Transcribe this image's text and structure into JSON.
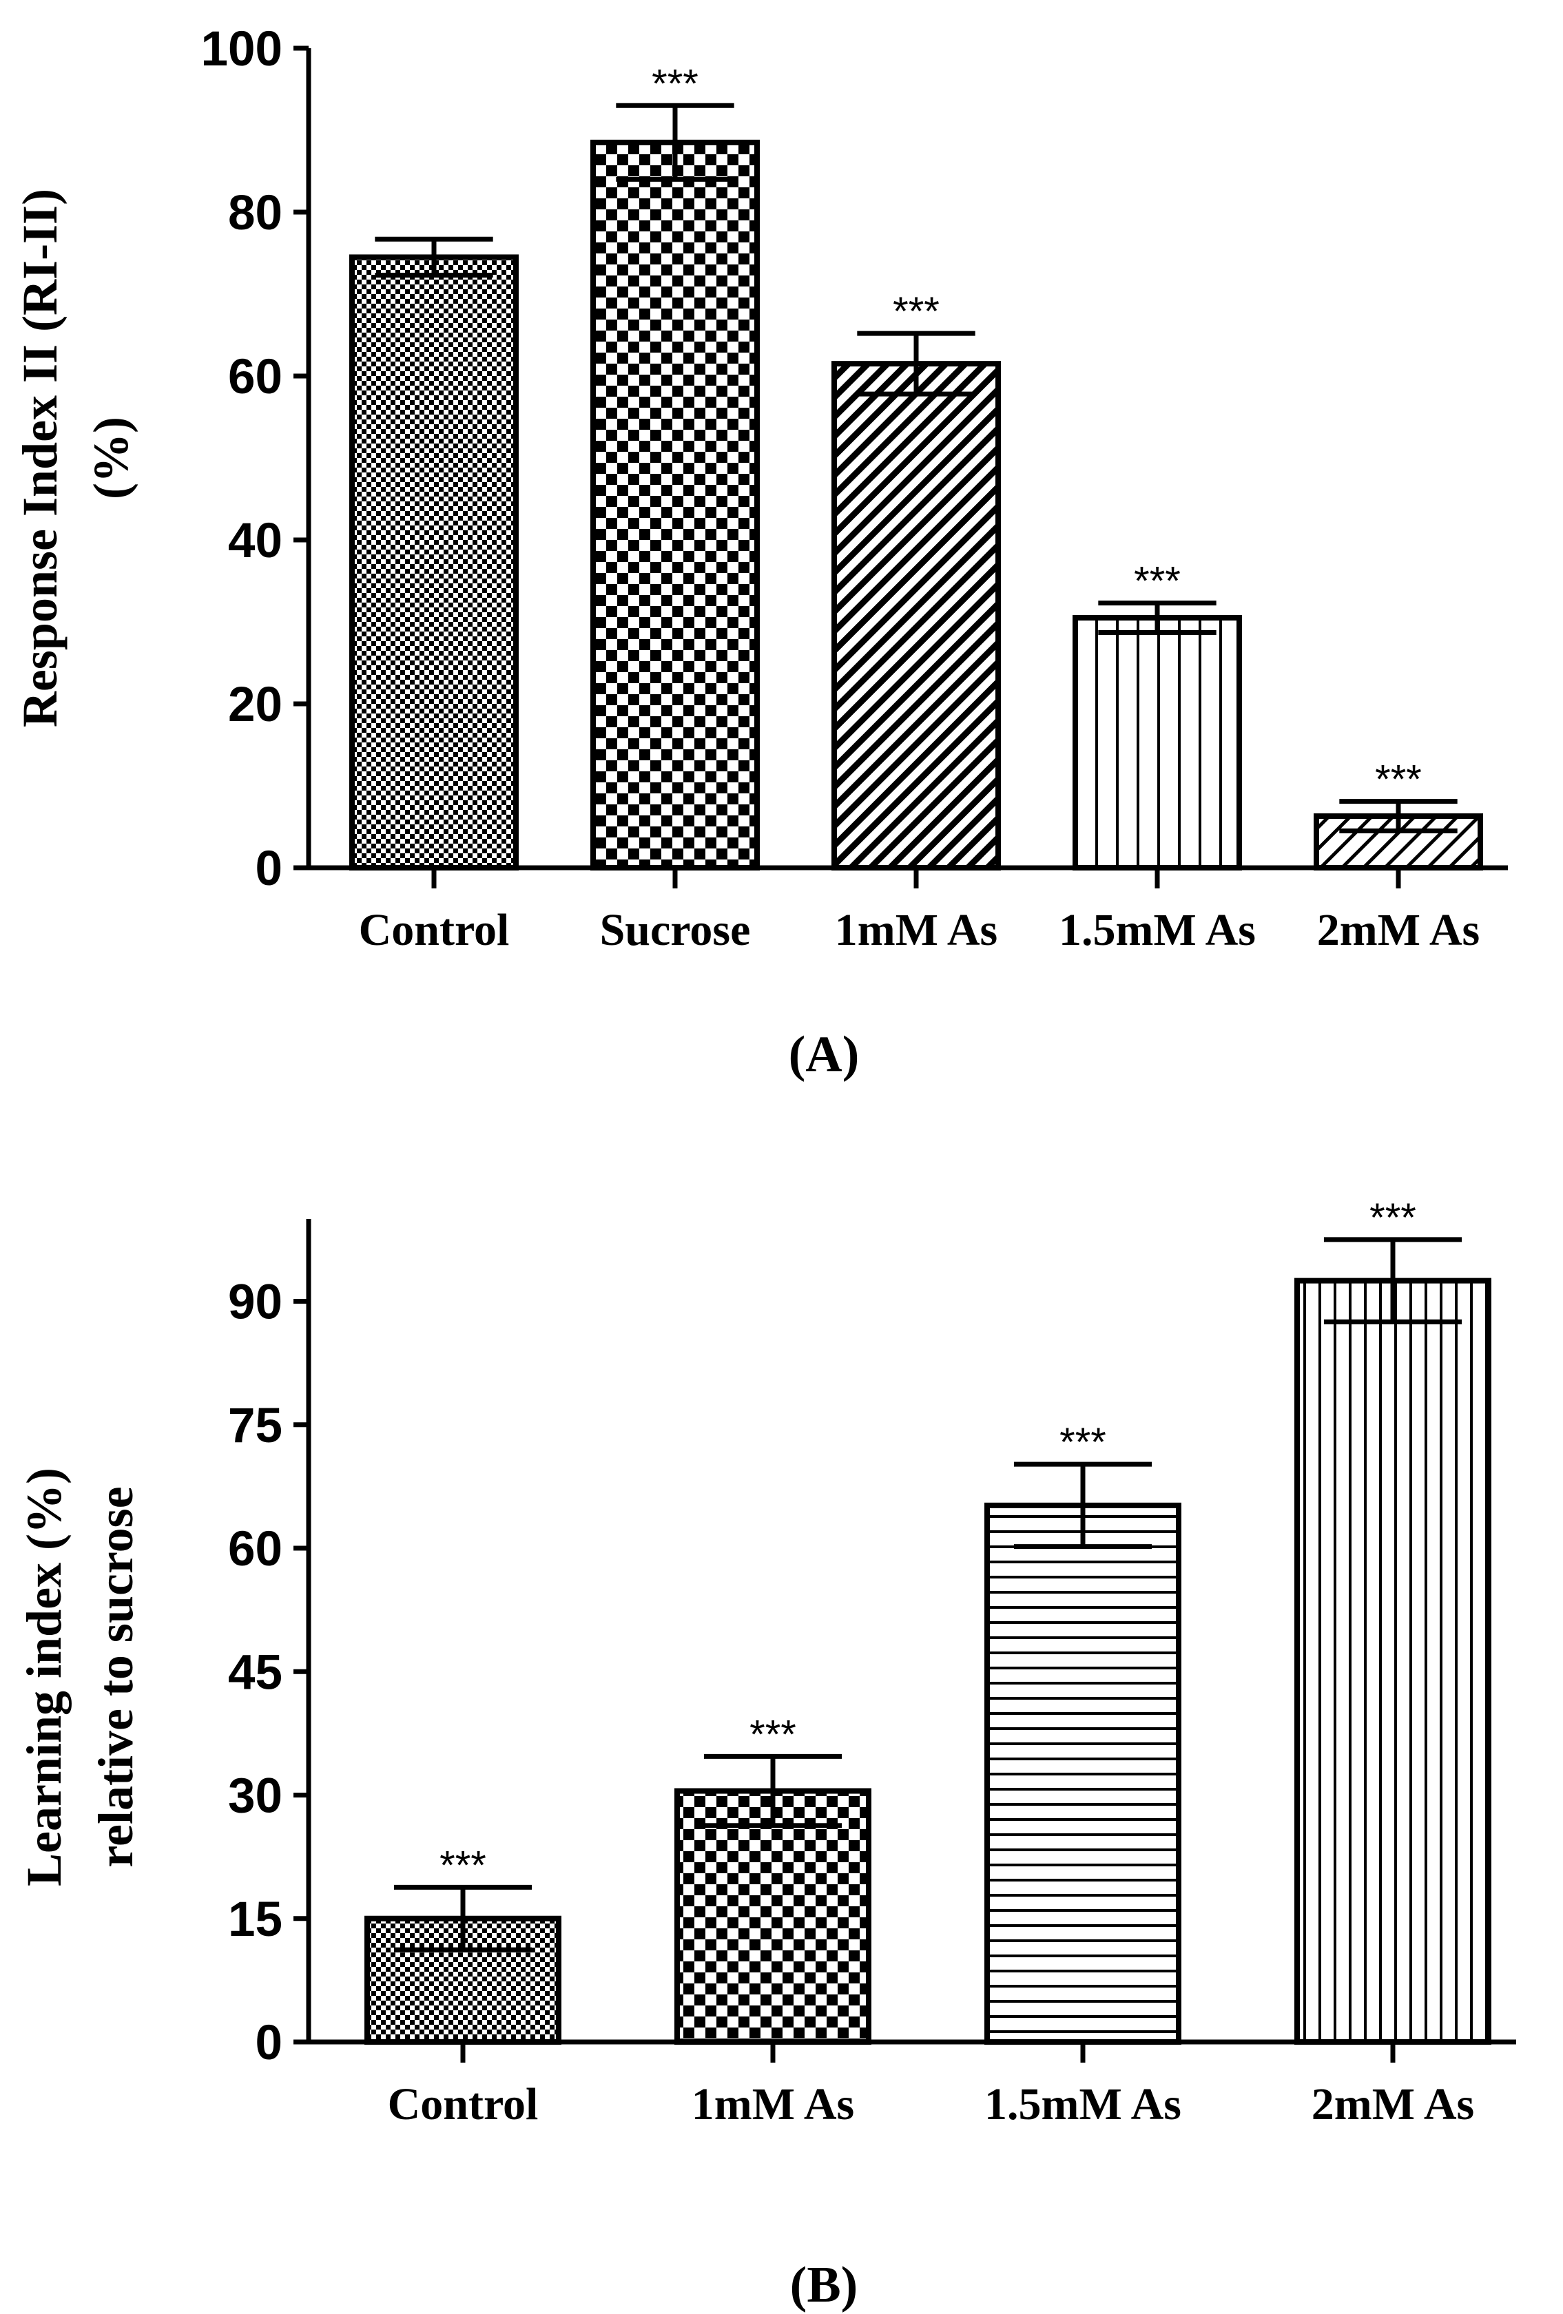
{
  "chart_data": [
    {
      "type": "bar",
      "panel_label": "(A)",
      "ylabel_lines": [
        "Response Index II (RI-II)",
        "(%)"
      ],
      "xlabel": "",
      "categories": [
        "Control",
        "Sucrose",
        "1mM As",
        "1.5mM As",
        "2mM As"
      ],
      "values": [
        74.5,
        88.5,
        61.5,
        30.5,
        6.3
      ],
      "errors": [
        2.2,
        4.5,
        3.7,
        1.8,
        1.8
      ],
      "significance": [
        "",
        "***",
        "***",
        "***",
        "***"
      ],
      "patterns": [
        "fine-check",
        "coarse-check",
        "diagonal",
        "vertical-wide",
        "diagonal-light"
      ],
      "ylim": [
        0,
        100
      ],
      "yticks": [
        0,
        20,
        40,
        60,
        80,
        100
      ]
    },
    {
      "type": "bar",
      "panel_label": "(B)",
      "ylabel_lines": [
        "Learning index (%)",
        "relative to sucrose"
      ],
      "xlabel": "",
      "categories": [
        "Control",
        "1mM As",
        "1.5mM As",
        "2mM As"
      ],
      "values": [
        15,
        30.5,
        65.2,
        92.5
      ],
      "errors": [
        3.8,
        4.2,
        5,
        5
      ],
      "significance": [
        "***",
        "***",
        "***",
        "***"
      ],
      "patterns": [
        "fine-check",
        "coarse-check",
        "horizontal",
        "vertical"
      ],
      "ylim": [
        0,
        100
      ],
      "yticks": [
        0,
        15,
        30,
        45,
        60,
        75,
        90
      ]
    }
  ]
}
